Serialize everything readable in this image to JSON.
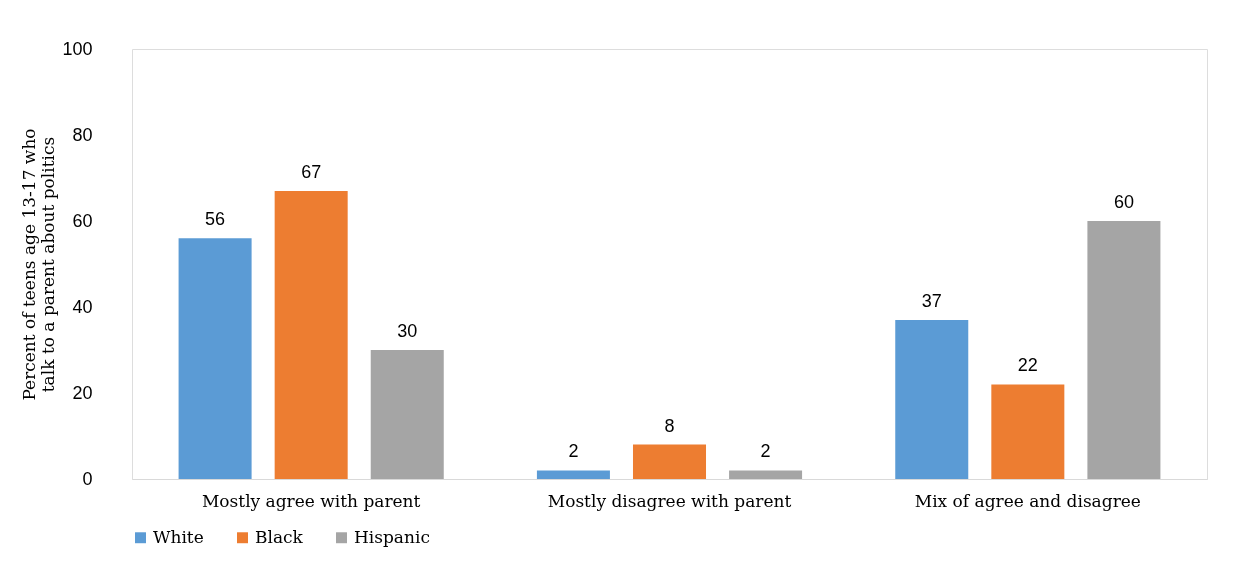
{
  "chart_data": {
    "type": "bar",
    "ylabel": "Percent of teens age 13-17 who\ntalk to a parent about politics",
    "categories": [
      "Mostly agree with parent",
      "Mostly disagree with parent",
      "Mix of agree and disagree"
    ],
    "series": [
      {
        "name": "White",
        "color": "#5b9bd5",
        "values": [
          56,
          2,
          37
        ]
      },
      {
        "name": "Black",
        "color": "#ed7d31",
        "values": [
          67,
          8,
          22
        ]
      },
      {
        "name": "Hispanic",
        "color": "#a5a5a5",
        "values": [
          30,
          2,
          60
        ]
      }
    ],
    "ylim": [
      0,
      100
    ],
    "yticks": [
      0,
      20,
      40,
      60,
      80,
      100
    ],
    "grid": false,
    "legend": "bottom",
    "data_labels": true
  }
}
